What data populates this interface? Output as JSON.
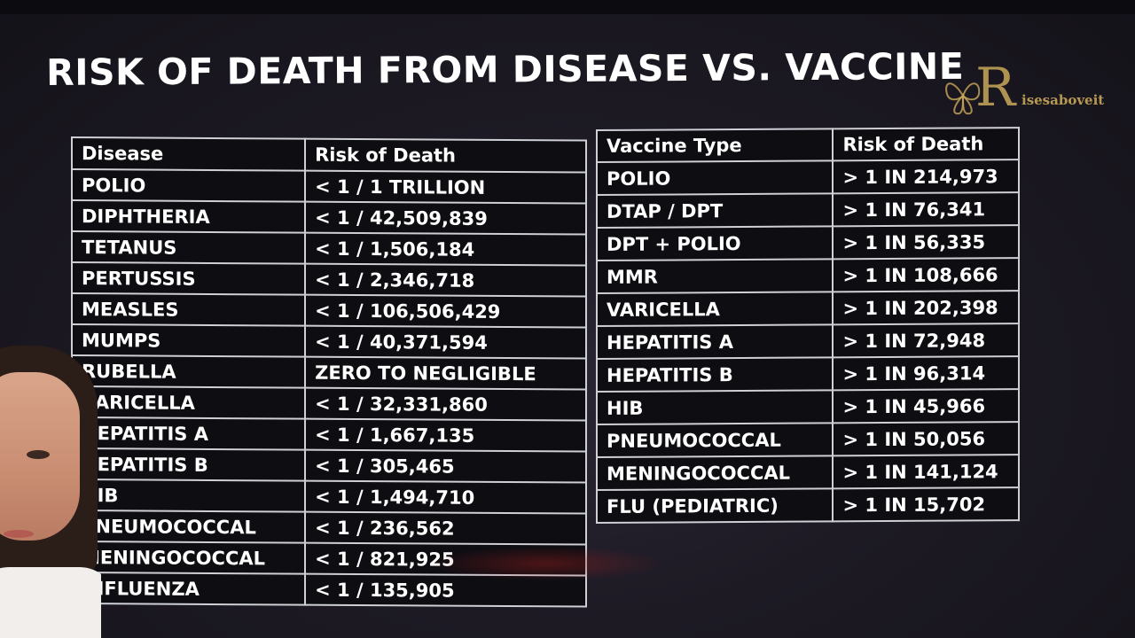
{
  "title": "RISK OF DEATH FROM DISEASE VS. VACCINE",
  "watermark": {
    "letter": "R",
    "text": "isesaboveit"
  },
  "disease_table": {
    "headers": [
      "Disease",
      "Risk of Death"
    ],
    "rows": [
      [
        "POLIO",
        "< 1 / 1 TRILLION"
      ],
      [
        "DIPHTHERIA",
        "< 1 / 42,509,839"
      ],
      [
        "TETANUS",
        "< 1 / 1,506,184"
      ],
      [
        "PERTUSSIS",
        "< 1 / 2,346,718"
      ],
      [
        "MEASLES",
        "< 1 / 106,506,429"
      ],
      [
        "MUMPS",
        "< 1 / 40,371,594"
      ],
      [
        "RUBELLA",
        "ZERO TO NEGLIGIBLE"
      ],
      [
        "VARICELLA",
        "< 1 / 32,331,860"
      ],
      [
        "HEPATITIS A",
        "< 1 / 1,667,135"
      ],
      [
        "HEPATITIS B",
        "< 1 / 305,465"
      ],
      [
        "HIB",
        "< 1 / 1,494,710"
      ],
      [
        "PNEUMOCOCCAL",
        "< 1 / 236,562"
      ],
      [
        "MENINGOCOCCAL",
        "< 1 / 821,925"
      ],
      [
        "INFLUENZA",
        "< 1 / 135,905"
      ]
    ]
  },
  "vaccine_table": {
    "headers": [
      "Vaccine Type",
      "Risk of Death"
    ],
    "rows": [
      [
        "POLIO",
        "> 1 IN 214,973"
      ],
      [
        "DTAP / DPT",
        "> 1 IN 76,341"
      ],
      [
        "DPT + POLIO",
        "> 1 IN 56,335"
      ],
      [
        "MMR",
        "> 1 IN 108,666"
      ],
      [
        "VARICELLA",
        "> 1 IN 202,398"
      ],
      [
        "HEPATITIS A",
        "> 1 IN 72,948"
      ],
      [
        "HEPATITIS B",
        "> 1 IN 96,314"
      ],
      [
        "HIB",
        "> 1 IN 45,966"
      ],
      [
        "PNEUMOCOCCAL",
        "> 1 IN 50,056"
      ],
      [
        "MENINGOCOCCAL",
        "> 1 IN 141,124"
      ],
      [
        "FLU (PEDIATRIC)",
        "> 1 IN 15,702"
      ]
    ]
  },
  "colors": {
    "background": "#1d1a24",
    "table_background": "#0e0d12",
    "table_border": "#cfcfd6",
    "text": "#ffffff",
    "watermark": "#c9a85a"
  }
}
